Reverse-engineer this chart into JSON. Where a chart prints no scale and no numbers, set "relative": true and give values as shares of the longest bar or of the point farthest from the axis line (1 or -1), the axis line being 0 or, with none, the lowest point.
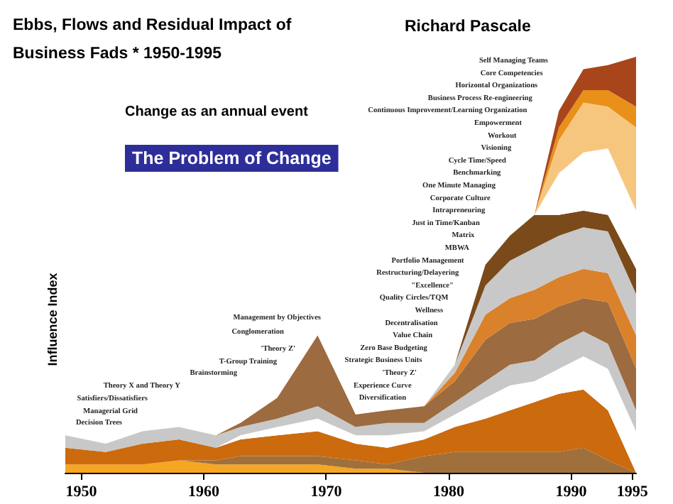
{
  "chart_data": {
    "type": "area",
    "stacked": true,
    "relative": true,
    "title": "Ebbs, Flows and Residual Impact of Business Fads * 1950-1995",
    "subtitle": "Richard Pascale",
    "ylabel": "Influence Index",
    "x": [
      1948.7,
      1952,
      1955,
      1958,
      1961,
      1963,
      1966,
      1969.3,
      1972.4,
      1975,
      1978,
      1980.5,
      1983,
      1985,
      1987,
      1989,
      1991,
      1993,
      1995.3
    ],
    "xlim": [
      1948.7,
      1995.3
    ],
    "xticks": [
      1950,
      1960,
      1970,
      1980,
      1990,
      1995
    ],
    "series": [
      {
        "color": "#f5a623",
        "values": [
          0.02,
          0.02,
          0.02,
          0.03,
          0.02,
          0.02,
          0.02,
          0.02,
          0.01,
          0.01,
          0,
          0,
          0,
          0,
          0,
          0,
          0,
          0,
          0
        ]
      },
      {
        "color": "#a0703c",
        "values": [
          0,
          0,
          0,
          0,
          0.01,
          0.02,
          0.02,
          0.02,
          0.02,
          0.01,
          0.04,
          0.05,
          0.05,
          0.05,
          0.05,
          0.05,
          0.06,
          0.03,
          0
        ]
      },
      {
        "color": "#cc6a0e",
        "values": [
          0.04,
          0.03,
          0.05,
          0.05,
          0.03,
          0.04,
          0.05,
          0.06,
          0.04,
          0.04,
          0.04,
          0.06,
          0.08,
          0.1,
          0.12,
          0.14,
          0.14,
          0.12,
          0
        ]
      },
      {
        "color": "#ffffff",
        "values": [
          0,
          0,
          0,
          0,
          0,
          0.01,
          0.02,
          0.03,
          0.02,
          0.03,
          0.02,
          0.03,
          0.05,
          0.06,
          0.05,
          0.06,
          0.08,
          0.1,
          0.1
        ]
      },
      {
        "color": "#c8c8c8",
        "values": [
          0.03,
          0.02,
          0.03,
          0.03,
          0.03,
          0.02,
          0.02,
          0.03,
          0.02,
          0.03,
          0.02,
          0.03,
          0.04,
          0.05,
          0.05,
          0.06,
          0.06,
          0.06,
          0.05
        ]
      },
      {
        "color": "#9c6b3f",
        "values": [
          0,
          0,
          0,
          0,
          0,
          0.01,
          0.05,
          0.17,
          0.03,
          0.03,
          0.04,
          0.05,
          0.1,
          0.1,
          0.1,
          0.09,
          0.08,
          0.1,
          0.1
        ]
      },
      {
        "color": "#d9822b",
        "values": [
          0,
          0,
          0,
          0,
          0,
          0,
          0,
          0,
          0,
          0,
          0,
          0.02,
          0.06,
          0.06,
          0.07,
          0.07,
          0.07,
          0.07,
          0.08
        ]
      },
      {
        "color": "#c8c8c8",
        "values": [
          0,
          0,
          0,
          0,
          0,
          0,
          0,
          0,
          0,
          0,
          0,
          0.02,
          0.07,
          0.09,
          0.1,
          0.1,
          0.1,
          0.1,
          0.1
        ]
      },
      {
        "color": "#7a4a1a",
        "values": [
          0,
          0,
          0,
          0,
          0,
          0,
          0,
          0,
          0,
          0,
          0,
          0,
          0.05,
          0.06,
          0.08,
          0.05,
          0.04,
          0.04,
          0.06
        ]
      },
      {
        "color": "#ffffff",
        "values": [
          0,
          0,
          0,
          0,
          0,
          0,
          0,
          0,
          0,
          0,
          0,
          0,
          0,
          0,
          0,
          0.1,
          0.14,
          0.16,
          0.14
        ]
      },
      {
        "color": "#f7c67e",
        "values": [
          0,
          0,
          0,
          0,
          0,
          0,
          0,
          0,
          0,
          0,
          0,
          0,
          0,
          0,
          0,
          0.08,
          0.12,
          0.1,
          0.2
        ]
      },
      {
        "color": "#e8901a",
        "values": [
          0,
          0,
          0,
          0,
          0,
          0,
          0,
          0,
          0,
          0,
          0,
          0,
          0,
          0,
          0,
          0.03,
          0.03,
          0.04,
          0.05
        ]
      },
      {
        "color": "#a8451a",
        "values": [
          0,
          0,
          0,
          0,
          0,
          0,
          0,
          0,
          0,
          0,
          0,
          0,
          0,
          0,
          0,
          0.04,
          0.05,
          0.06,
          0.12
        ]
      }
    ],
    "annotations": [
      "Change as an annual event",
      "The Problem of Change",
      "Self Managing Teams",
      "Core Competencies",
      "Horizontal Organizations",
      "Business Process Re-engineering",
      "Continuous Improvement/Learning Organization",
      "Empowerment",
      "Workout",
      "Visioning",
      "Cycle Time/Speed",
      "Benchmarking",
      "One Minute Managing",
      "Corporate Culture",
      "Intrapreneuring",
      "Just in Time/Kanban",
      "Matrix",
      "MBWA",
      "Portfolio Management",
      "Restructuring/Delayering",
      "\"Excellence\"",
      "Quality Circles/TQM",
      "Wellness",
      "Decentralisation",
      "Value Chain",
      "Zero Base Budgeting",
      "Strategic Business Units",
      "'Theory Z'",
      "Experience Curve",
      "Diversification",
      "Management by Objectives",
      "Conglomeration",
      "'Theory Z'",
      "T-Group Training",
      "Brainstorming",
      "Theory X and Theory Y",
      "Satisfiers/Dissatisfiers",
      "Managerial Grid",
      "Decision Trees"
    ]
  }
}
